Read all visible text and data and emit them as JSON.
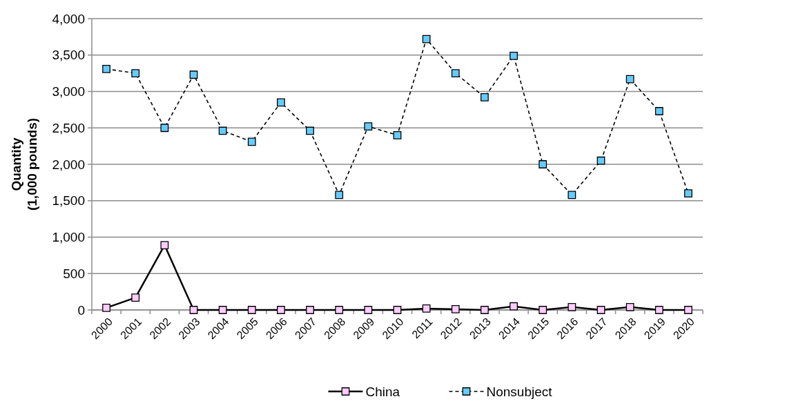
{
  "chart_data": {
    "type": "line",
    "ylabel": "Quantity\n(1,000 pounds)",
    "categories": [
      "2000",
      "2001",
      "2002",
      "2003",
      "2004",
      "2005",
      "2006",
      "2007",
      "2008",
      "2009",
      "2010",
      "2011",
      "2012",
      "2013",
      "2014",
      "2015",
      "2016",
      "2017",
      "2018",
      "2019",
      "2020"
    ],
    "series": [
      {
        "name": "China",
        "color": "#ffccff",
        "line_style": "solid",
        "values": [
          30,
          170,
          890,
          0,
          0,
          0,
          0,
          0,
          0,
          0,
          0,
          20,
          10,
          0,
          50,
          0,
          40,
          0,
          40,
          0,
          0
        ]
      },
      {
        "name": "Nonsubject",
        "color": "#66ccff",
        "line_style": "dashed",
        "values": [
          3310,
          3250,
          2500,
          3230,
          2460,
          2310,
          2850,
          2460,
          1580,
          2520,
          2400,
          3720,
          3250,
          2920,
          3490,
          2000,
          1580,
          2050,
          3170,
          2730,
          1600
        ]
      }
    ],
    "ylim": [
      0,
      4000
    ],
    "yticks": [
      {
        "value": 0,
        "label": "0"
      },
      {
        "value": 500,
        "label": "500"
      },
      {
        "value": 1000,
        "label": "1,000"
      },
      {
        "value": 1500,
        "label": "1,500"
      },
      {
        "value": 2000,
        "label": "2,000"
      },
      {
        "value": 2500,
        "label": "2,500"
      },
      {
        "value": 3000,
        "label": "3,000"
      },
      {
        "value": 3500,
        "label": "3,500"
      },
      {
        "value": 4000,
        "label": "4,000"
      }
    ],
    "grid": "y",
    "legend": "bottom",
    "marker": "square"
  }
}
